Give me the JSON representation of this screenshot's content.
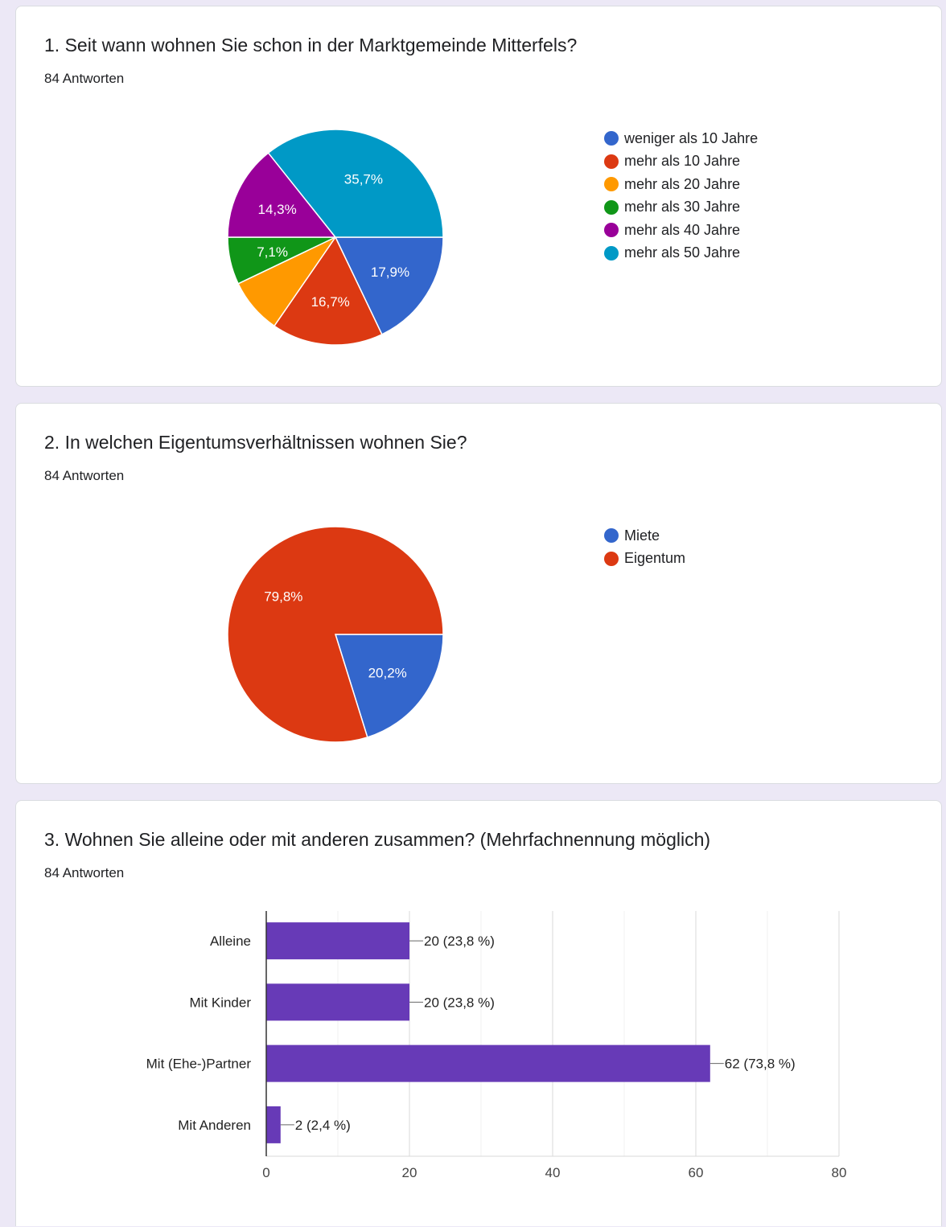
{
  "questions": [
    {
      "title": "1. Seit wann wohnen Sie schon in der Marktgemeinde Mitterfels?",
      "responses": "84 Antworten"
    },
    {
      "title": "2. In welchen Eigentumsverhältnissen wohnen Sie?",
      "responses": "84 Antworten"
    },
    {
      "title": "3. Wohnen Sie alleine oder mit anderen zusammen? (Mehrfachnennung möglich)",
      "responses": "84 Antworten"
    }
  ],
  "chart_data": [
    {
      "type": "pie",
      "categories": [
        "weniger als 10 Jahre",
        "mehr als 10 Jahre",
        "mehr als 20 Jahre",
        "mehr als 30 Jahre",
        "mehr als 40 Jahre",
        "mehr als 50 Jahre"
      ],
      "values": [
        17.9,
        16.7,
        8.3,
        7.1,
        14.3,
        35.7
      ],
      "data_labels": [
        "17,9%",
        "16,7%",
        "",
        "7,1%",
        "14,3%",
        "35,7%"
      ],
      "colors": [
        "#3366cc",
        "#dc3912",
        "#ff9900",
        "#109618",
        "#990099",
        "#0099c6"
      ],
      "legend": "right"
    },
    {
      "type": "pie",
      "categories": [
        "Miete",
        "Eigentum"
      ],
      "values": [
        20.2,
        79.8
      ],
      "data_labels": [
        "20,2%",
        "79,8%"
      ],
      "colors": [
        "#3366cc",
        "#dc3912"
      ],
      "legend": "right"
    },
    {
      "type": "bar",
      "orientation": "horizontal",
      "categories": [
        "Alleine",
        "Mit Kinder",
        "Mit (Ehe-)Partner",
        "Mit Anderen"
      ],
      "values": [
        20,
        20,
        62,
        2
      ],
      "data_labels": [
        "20 (23,8 %)",
        "20 (23,8 %)",
        "62 (73,8 %)",
        "2 (2,4 %)"
      ],
      "xlim": [
        0,
        80
      ],
      "xticks": [
        0,
        20,
        40,
        60,
        80
      ],
      "bar_color": "#673ab7",
      "grid": true
    }
  ]
}
